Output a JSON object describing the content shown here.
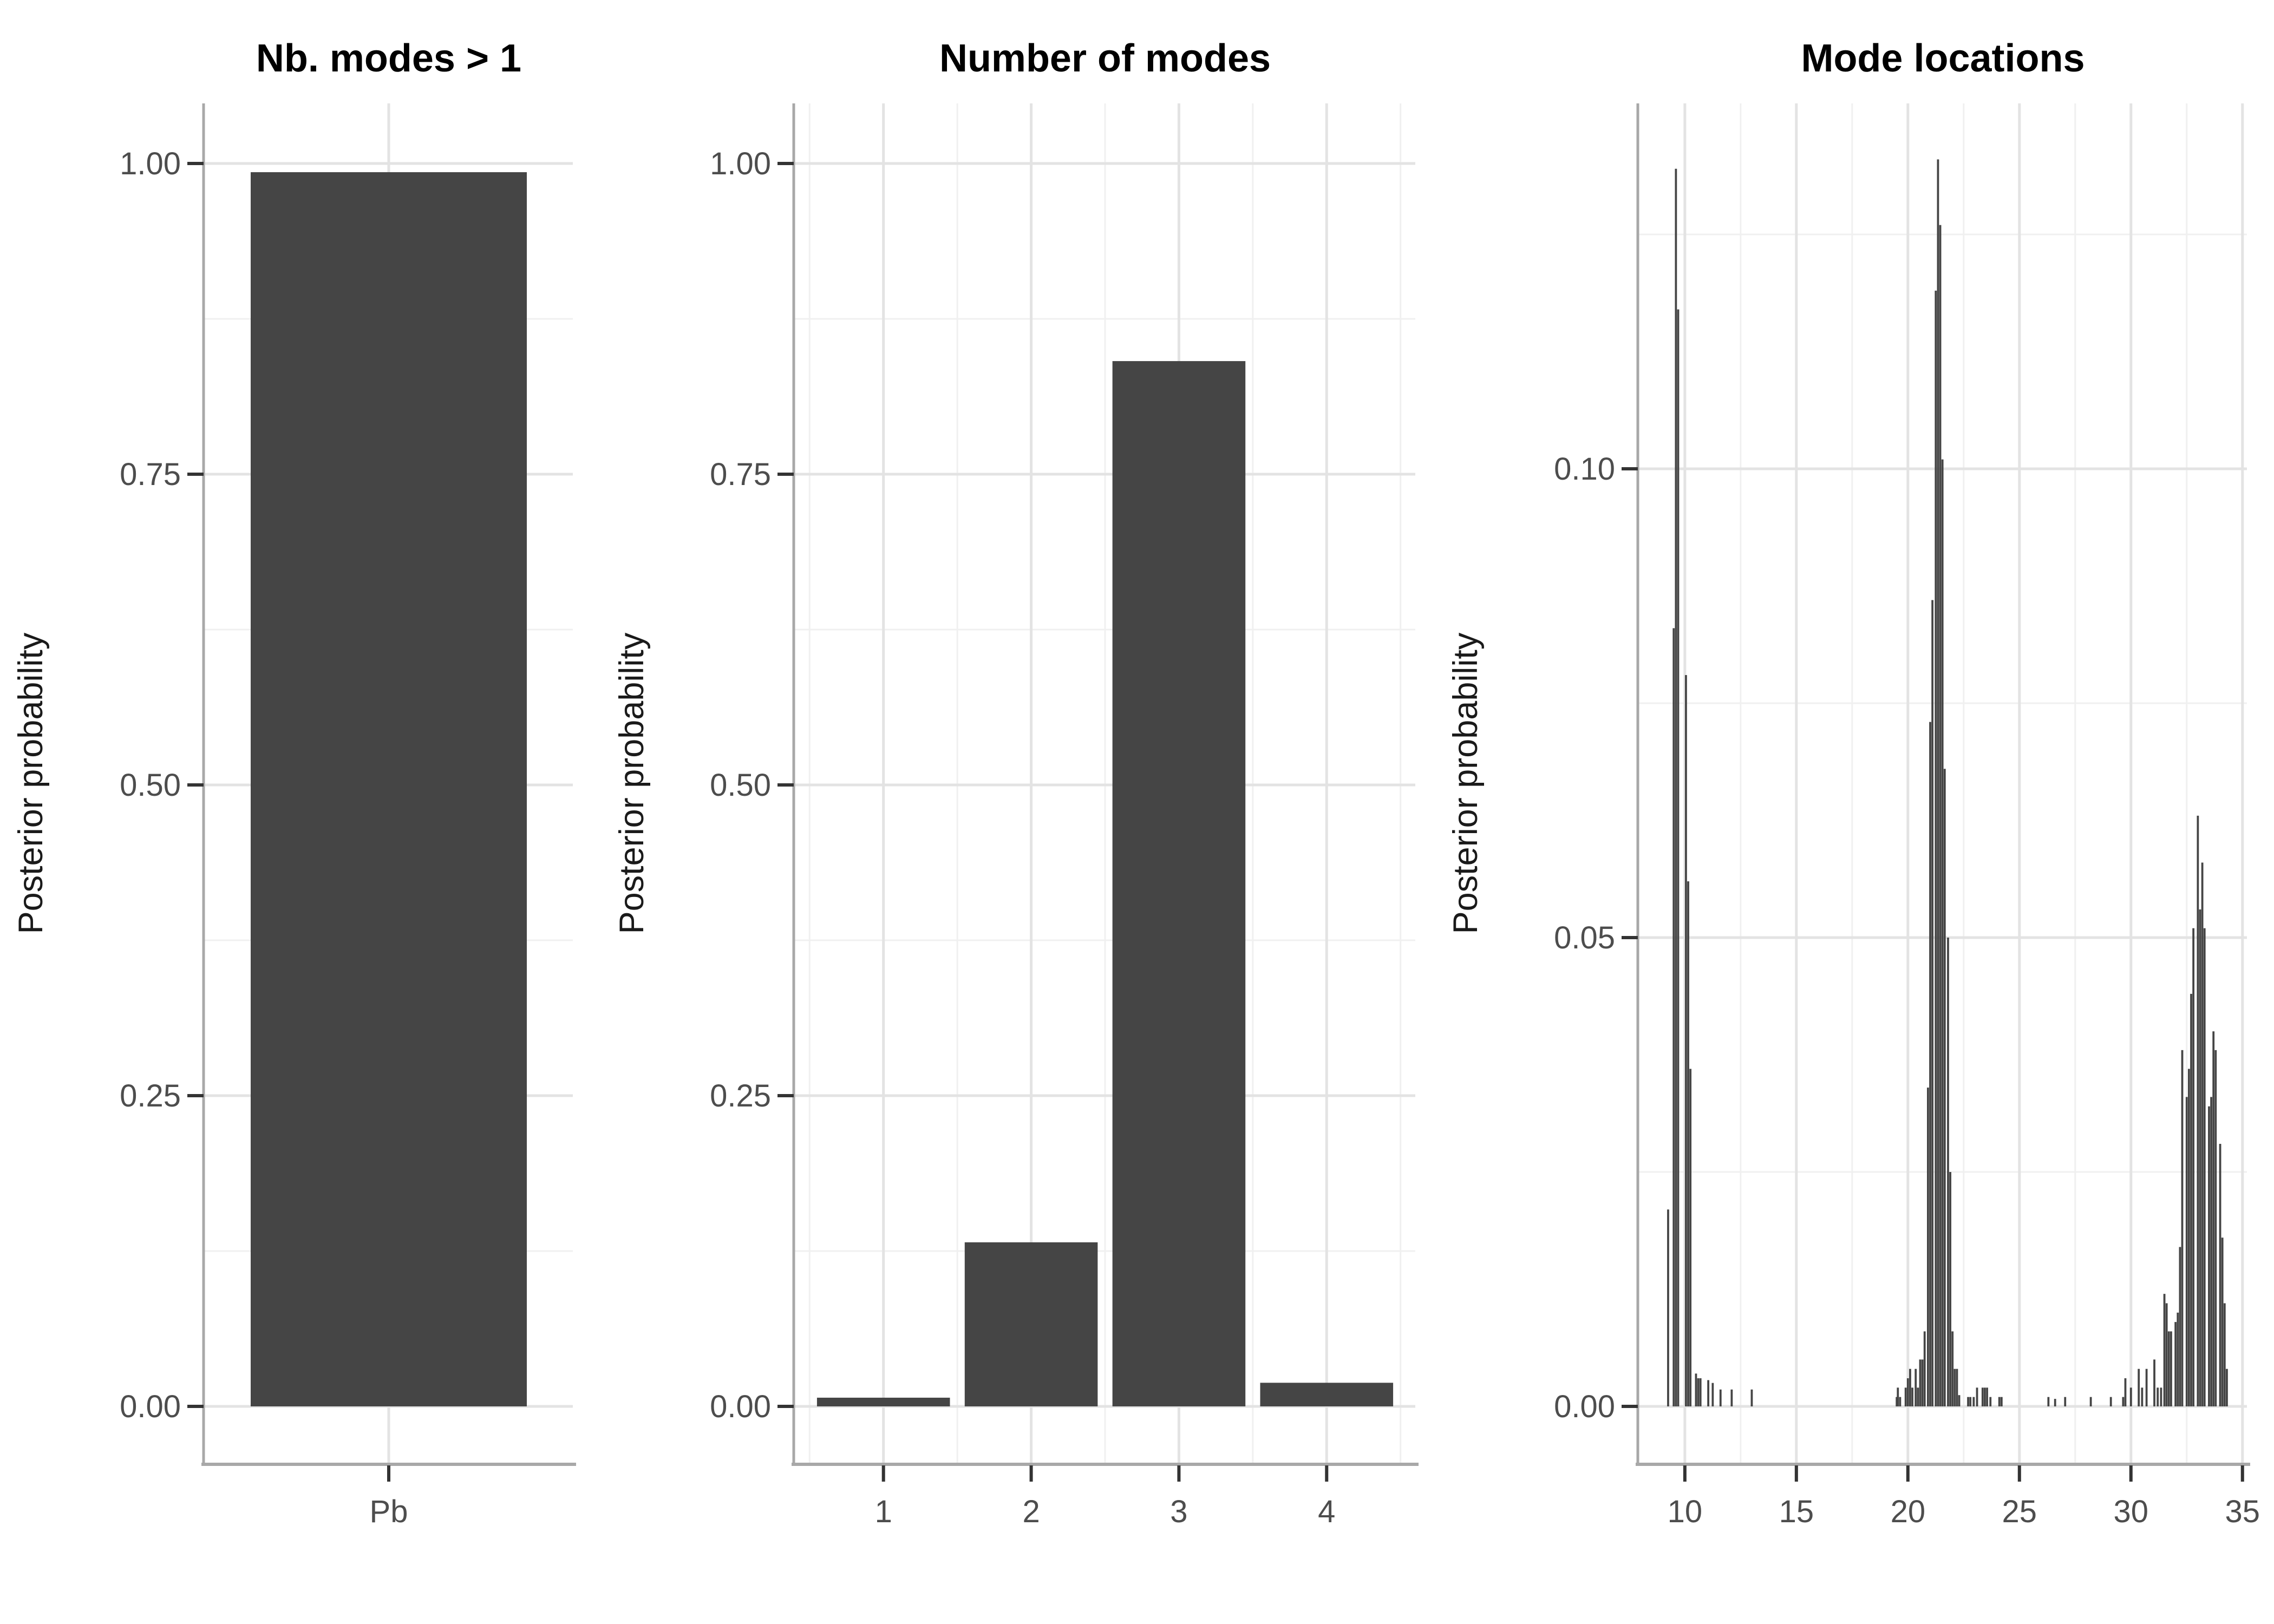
{
  "figure": {
    "y_axis_title": "Posterior probability",
    "colors": {
      "bar_fill": "#454545",
      "grid_major": "#E3E3E3",
      "grid_minor": "#F0F0F0",
      "axis_line": "#A8A8A8",
      "tick_mark": "#333333",
      "tick_label": "#4D4D4D",
      "title": "#000000",
      "axis_title": "#1A1A1A",
      "background": "#FFFFFF"
    }
  },
  "chart_data": [
    {
      "id": "nb-modes-gt-1",
      "type": "bar",
      "title": "Nb. modes > 1",
      "ylabel": "Posterior probability",
      "x_type": "discrete",
      "categories": [
        "Pb"
      ],
      "values": [
        0.993
      ],
      "y_tick_labels": [
        "0.00",
        "0.25",
        "0.50",
        "0.75",
        "1.00"
      ],
      "y_tick_values": [
        0,
        0.25,
        0.5,
        0.75,
        1.0
      ],
      "y_minor_values": [
        0.125,
        0.375,
        0.625,
        0.875
      ],
      "ylim": [
        -0.047,
        1.048
      ],
      "grid": true
    },
    {
      "id": "number-of-modes",
      "type": "bar",
      "title": "Number of modes",
      "ylabel": "Posterior probability",
      "x_type": "discrete",
      "categories": [
        "1",
        "2",
        "3",
        "4"
      ],
      "values": [
        0.007,
        0.132,
        0.841,
        0.019
      ],
      "x_minor_values": [
        0.5,
        1.5,
        2.5,
        3.5,
        4.5
      ],
      "y_tick_labels": [
        "0.00",
        "0.25",
        "0.50",
        "0.75",
        "1.00"
      ],
      "y_tick_values": [
        0,
        0.25,
        0.5,
        0.75,
        1.0
      ],
      "y_minor_values": [
        0.125,
        0.375,
        0.625,
        0.875
      ],
      "ylim": [
        -0.047,
        1.048
      ],
      "grid": true
    },
    {
      "id": "mode-locations",
      "type": "histogram",
      "title": "Mode locations",
      "ylabel": "Posterior probability",
      "x_type": "continuous",
      "xlim": [
        7.94,
        35.2
      ],
      "bin_width": 0.1,
      "x_tick_labels": [
        "10",
        "15",
        "20",
        "25",
        "30",
        "35"
      ],
      "x_tick_values": [
        10,
        15,
        20,
        25,
        30,
        35
      ],
      "x_minor_values": [
        12.5,
        17.5,
        22.5,
        27.5,
        32.5
      ],
      "y_tick_labels": [
        "0.00",
        "0.05",
        "0.10"
      ],
      "y_tick_values": [
        0,
        0.05,
        0.1
      ],
      "y_minor_values": [
        0.025,
        0.075,
        0.125
      ],
      "ylim": [
        -0.006,
        0.139
      ],
      "grid": true,
      "bars": [
        [
          9.25,
          0.021
        ],
        [
          9.5,
          0.083
        ],
        [
          9.6,
          0.132
        ],
        [
          9.7,
          0.117
        ],
        [
          10.05,
          0.078
        ],
        [
          10.15,
          0.056
        ],
        [
          10.25,
          0.036
        ],
        [
          10.5,
          0.0035
        ],
        [
          10.6,
          0.003
        ],
        [
          10.7,
          0.003
        ],
        [
          11.05,
          0.0028
        ],
        [
          11.25,
          0.0025
        ],
        [
          11.6,
          0.0018
        ],
        [
          12.1,
          0.0018
        ],
        [
          13.0,
          0.0018
        ],
        [
          19.5,
          0.001
        ],
        [
          19.55,
          0.002
        ],
        [
          19.65,
          0.001
        ],
        [
          19.9,
          0.002
        ],
        [
          20.0,
          0.003
        ],
        [
          20.1,
          0.004
        ],
        [
          20.2,
          0.002
        ],
        [
          20.35,
          0.004
        ],
        [
          20.45,
          0.002
        ],
        [
          20.55,
          0.005
        ],
        [
          20.65,
          0.005
        ],
        [
          20.75,
          0.008
        ],
        [
          20.9,
          0.034
        ],
        [
          21.0,
          0.073
        ],
        [
          21.1,
          0.086
        ],
        [
          21.25,
          0.119
        ],
        [
          21.35,
          0.133
        ],
        [
          21.45,
          0.126
        ],
        [
          21.55,
          0.101
        ],
        [
          21.65,
          0.068
        ],
        [
          21.8,
          0.05
        ],
        [
          21.9,
          0.025
        ],
        [
          22.0,
          0.008
        ],
        [
          22.1,
          0.004
        ],
        [
          22.2,
          0.004
        ],
        [
          22.3,
          0.0012
        ],
        [
          22.7,
          0.001
        ],
        [
          22.8,
          0.001
        ],
        [
          22.95,
          0.001
        ],
        [
          23.1,
          0.002
        ],
        [
          23.35,
          0.002
        ],
        [
          23.45,
          0.002
        ],
        [
          23.55,
          0.002
        ],
        [
          23.7,
          0.001
        ],
        [
          24.1,
          0.001
        ],
        [
          24.2,
          0.001
        ],
        [
          26.3,
          0.001
        ],
        [
          26.6,
          0.0008
        ],
        [
          27.05,
          0.001
        ],
        [
          28.2,
          0.001
        ],
        [
          29.1,
          0.001
        ],
        [
          29.65,
          0.001
        ],
        [
          29.75,
          0.003
        ],
        [
          30.0,
          0.002
        ],
        [
          30.35,
          0.004
        ],
        [
          30.5,
          0.002
        ],
        [
          30.7,
          0.004
        ],
        [
          31.05,
          0.005
        ],
        [
          31.2,
          0.002
        ],
        [
          31.35,
          0.002
        ],
        [
          31.5,
          0.012
        ],
        [
          31.6,
          0.011
        ],
        [
          31.7,
          0.008
        ],
        [
          31.8,
          0.008
        ],
        [
          32.0,
          0.009
        ],
        [
          32.1,
          0.01
        ],
        [
          32.2,
          0.017
        ],
        [
          32.3,
          0.038
        ],
        [
          32.5,
          0.033
        ],
        [
          32.6,
          0.036
        ],
        [
          32.7,
          0.044
        ],
        [
          32.8,
          0.051
        ],
        [
          33.0,
          0.063
        ],
        [
          33.1,
          0.053
        ],
        [
          33.2,
          0.058
        ],
        [
          33.3,
          0.051
        ],
        [
          33.5,
          0.032
        ],
        [
          33.6,
          0.033
        ],
        [
          33.7,
          0.04
        ],
        [
          33.8,
          0.038
        ],
        [
          34.0,
          0.028
        ],
        [
          34.1,
          0.018
        ],
        [
          34.2,
          0.011
        ],
        [
          34.3,
          0.004
        ]
      ]
    }
  ]
}
